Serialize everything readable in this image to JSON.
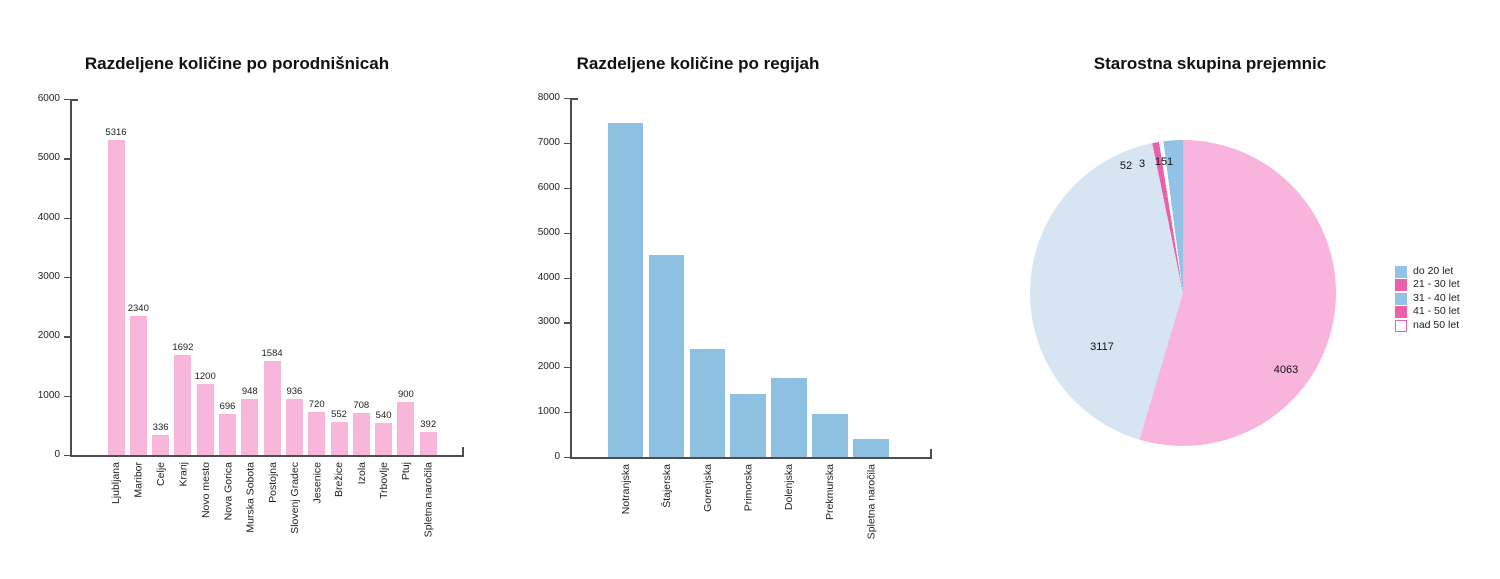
{
  "page": {
    "background": "#ffffff"
  },
  "chart_data": [
    {
      "id": "porodnisnice",
      "type": "bar",
      "title": "Razdeljene količine po porodnišnicah",
      "categories": [
        "Ljubljana",
        "Maribor",
        "Celje",
        "Kranj",
        "Novo mesto",
        "Nova Gorica",
        "Murska Sobota",
        "Postojna",
        "Slovenj Gradec",
        "Jesenice",
        "Brežice",
        "Izola",
        "Trbovlje",
        "Ptuj",
        "Spletna naročila"
      ],
      "values": [
        5316,
        2340,
        336,
        1692,
        1200,
        696,
        948,
        1584,
        936,
        720,
        552,
        708,
        540,
        900,
        392
      ],
      "value_labels": true,
      "bar_color": "#F8B7DA",
      "xlabel": "",
      "ylabel": "",
      "ylim": [
        0,
        6000
      ],
      "ytick_step": 1000,
      "grid": false
    },
    {
      "id": "regije",
      "type": "bar",
      "title": "Razdeljene količine po regijah",
      "categories": [
        "Notranjska",
        "Štajerska",
        "Gorenjska",
        "Primorska",
        "Dolenjska",
        "Prekmurska",
        "Spletna naročila"
      ],
      "values": [
        7440,
        4512,
        2412,
        1404,
        1752,
        948,
        392
      ],
      "value_labels": false,
      "bar_color": "#8EC1E1",
      "xlabel": "",
      "ylabel": "",
      "ylim": [
        0,
        8000
      ],
      "ytick_step": 1000,
      "grid": false
    },
    {
      "id": "starost",
      "type": "pie",
      "title": "Starostna skupina prejemnic",
      "start_angle_deg": 0,
      "direction": "clockwise",
      "slices": [
        {
          "label": "21 - 30 let",
          "value": 4063,
          "color": "#F8B4DC"
        },
        {
          "label": "31 - 40 let",
          "value": 3117,
          "color": "#D7E5F3"
        },
        {
          "label": "41 - 50 let",
          "value": 52,
          "color": "#EC5FA9"
        },
        {
          "label": "nad 50 let",
          "value": 3,
          "color": "#FFFFFF"
        },
        {
          "label": "do 20 let",
          "value": 151,
          "color": "#92C3E6"
        }
      ],
      "legend_position": "right",
      "legend": [
        {
          "label": "do 20 let",
          "swatch": "#92C3E6",
          "swatch_border": "#92C3E6"
        },
        {
          "label": "21 - 30 let",
          "swatch": "#EC5FA9",
          "swatch_border": "#EC5FA9"
        },
        {
          "label": "31 - 40 let",
          "swatch": "#92C3E6",
          "swatch_border": "#92C3E6"
        },
        {
          "label": "41 - 50 let",
          "swatch": "#EC5FA9",
          "swatch_border": "#EC5FA9"
        },
        {
          "label": "nad 50 let",
          "swatch": "#FFFFFF",
          "swatch_border": "#EC5FA9"
        }
      ]
    }
  ]
}
